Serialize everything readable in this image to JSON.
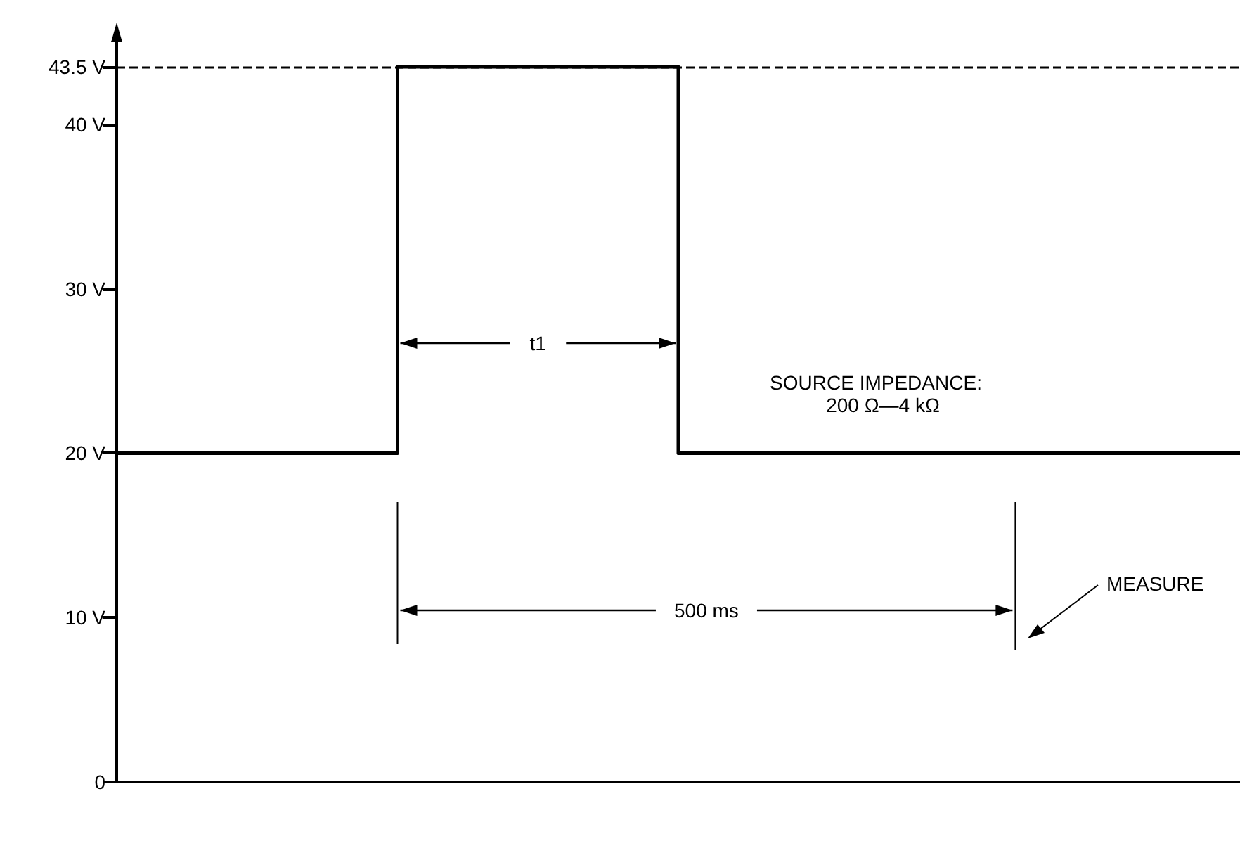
{
  "chart_data": {
    "type": "step",
    "categories": [
      null,
      null,
      null,
      null,
      null
    ],
    "series": [
      {
        "color": "#000000",
        "values": [
          20,
          43.5,
          20,
          20,
          20
        ]
      }
    ],
    "ylim": [
      0,
      45
    ],
    "yticks": [
      {
        "value": 0,
        "label": "0"
      },
      {
        "value": 10,
        "label": "10 V"
      },
      {
        "value": 20,
        "label": "20 V"
      },
      {
        "value": 30,
        "label": "30 V"
      },
      {
        "value": 40,
        "label": "40 V"
      },
      {
        "value": 43.5,
        "label": "43.5 V"
      }
    ],
    "ref_lines": [
      {
        "axis": "y",
        "value": 43.5,
        "color": "#000000",
        "line_style": "dashed"
      }
    ],
    "annotations": [
      "t1",
      "500 ms",
      "SOURCE IMPEDANCE:",
      "200 Ω—4 kΩ",
      "MEASURE"
    ],
    "tick_labels": "y",
    "grid": false,
    "marker": "none",
    "line_style": "solid"
  }
}
